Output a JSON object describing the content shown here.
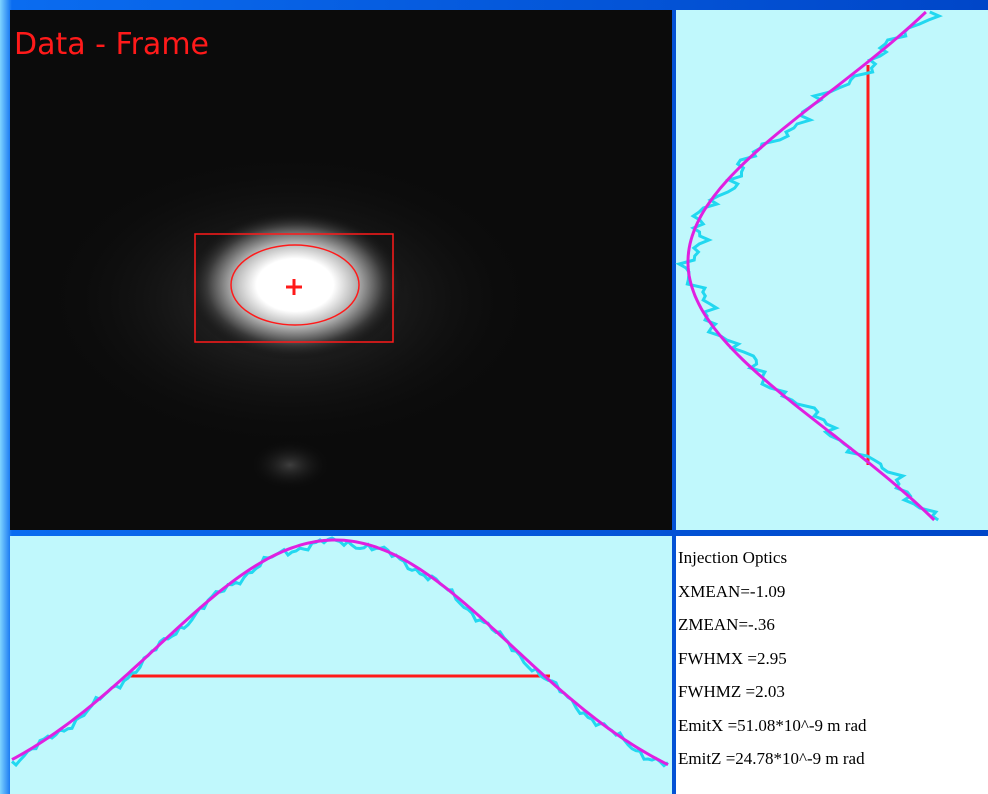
{
  "image_panel": {
    "label": "Data - Frame"
  },
  "info_panel": {
    "title": "Injection Optics",
    "lines": [
      "XMEAN=-1.09",
      "ZMEAN=-.36",
      "FWHMX =2.95",
      "FWHMZ =2.03",
      "EmitX =51.08*10^-9 m rad",
      "EmitZ =24.78*10^-9 m rad"
    ]
  }
}
